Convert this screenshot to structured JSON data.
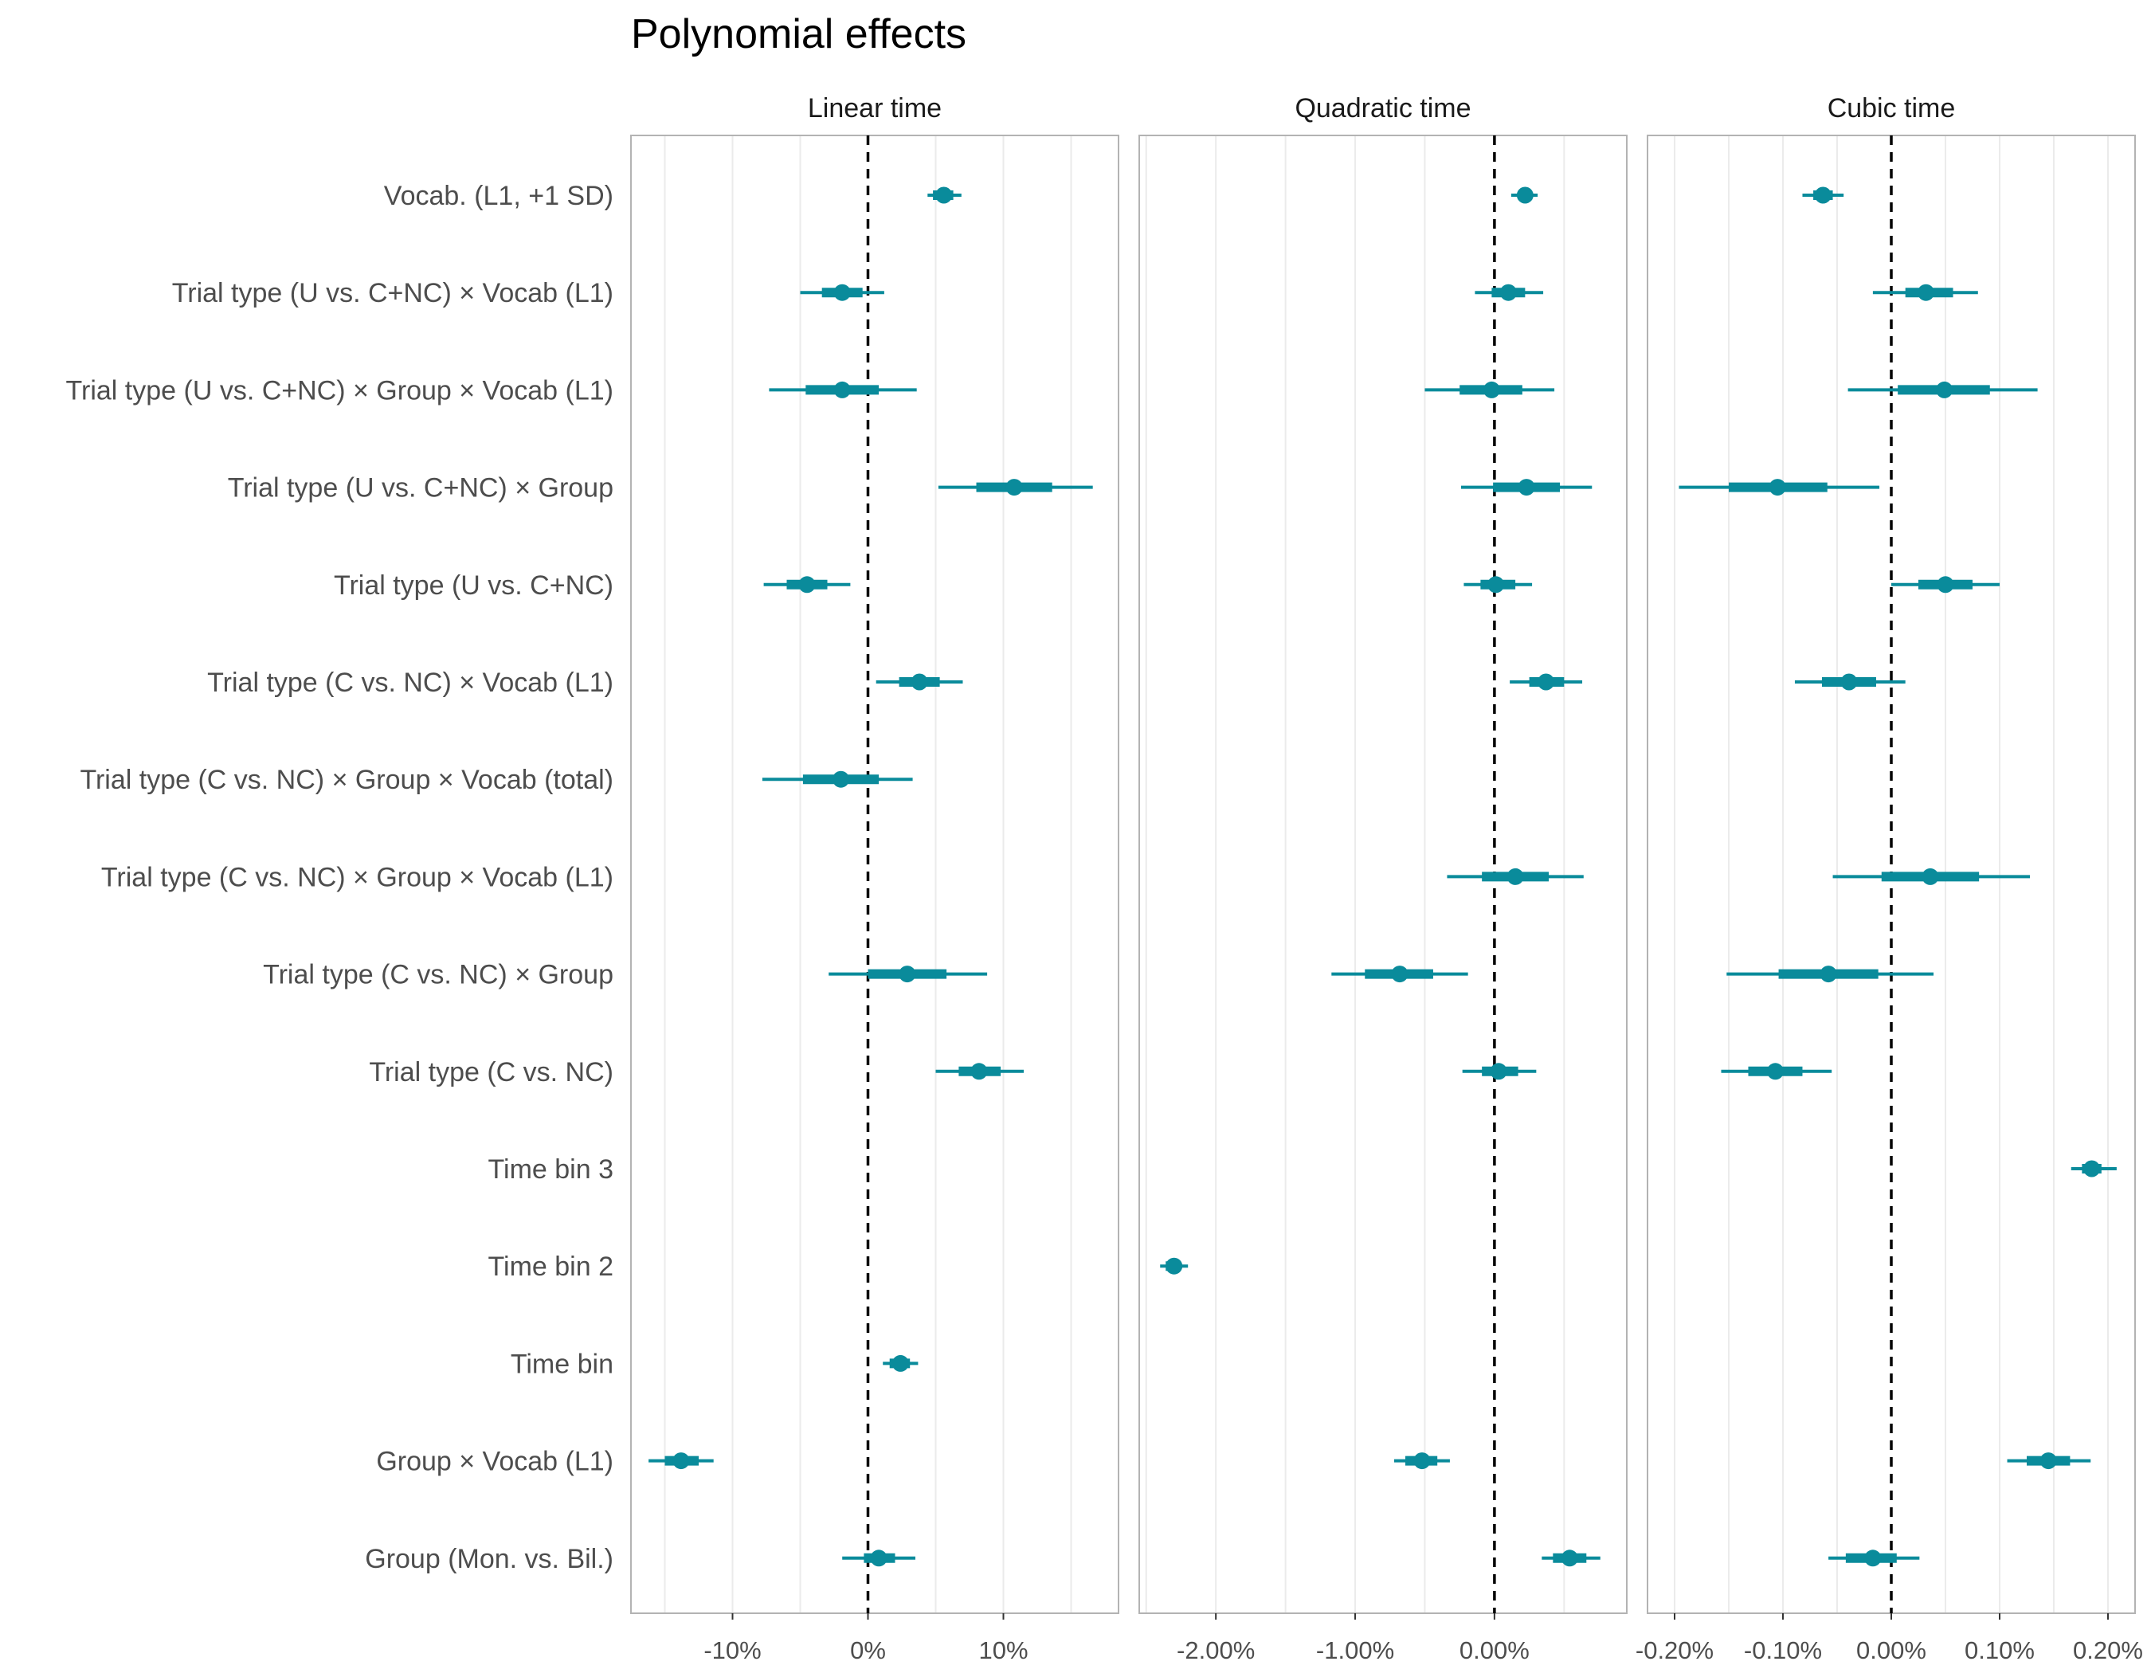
{
  "chart_data": {
    "type": "forest",
    "title": "Polynomial effects",
    "color": "#0a8b9b",
    "rows": [
      "Vocab. (L1, +1 SD)",
      "Trial type (U vs. C+NC) × Vocab (L1)",
      "Trial type (U vs. C+NC) × Group × Vocab (L1)",
      "Trial type (U vs. C+NC) × Group",
      "Trial type (U vs. C+NC)",
      "Trial type (C vs. NC) × Vocab (L1)",
      "Trial type (C vs. NC) × Group × Vocab (total)",
      "Trial type (C vs. NC) × Group × Vocab (L1)",
      "Trial type (C vs. NC) × Group",
      "Trial type (C vs. NC)",
      "Time bin 3",
      "Time bin 2",
      "Time bin",
      "Group × Vocab (L1)",
      "Group (Mon. vs. Bil.)"
    ],
    "panels": [
      {
        "label": "Linear time",
        "unit": "percent",
        "xlim": [
          -17.5,
          18.5
        ],
        "ticks": [
          -10,
          0,
          10
        ],
        "tick_labels": [
          "-10%",
          "0%",
          "10%"
        ],
        "minor_gridlines": [
          -15,
          -5,
          5,
          15
        ],
        "effects": [
          {
            "row": 0,
            "estimate": 5.6,
            "inner": [
              4.8,
              6.3
            ],
            "outer": [
              4.4,
              6.9
            ]
          },
          {
            "row": 1,
            "estimate": -1.9,
            "inner": [
              -3.4,
              -0.4
            ],
            "outer": [
              -5.0,
              1.2
            ]
          },
          {
            "row": 2,
            "estimate": -1.9,
            "inner": [
              -4.6,
              0.8
            ],
            "outer": [
              -7.3,
              3.6
            ]
          },
          {
            "row": 3,
            "estimate": 10.8,
            "inner": [
              8.0,
              13.6
            ],
            "outer": [
              5.2,
              16.6
            ]
          },
          {
            "row": 4,
            "estimate": -4.5,
            "inner": [
              -6.0,
              -3.0
            ],
            "outer": [
              -7.7,
              -1.3
            ]
          },
          {
            "row": 5,
            "estimate": 3.8,
            "inner": [
              2.3,
              5.3
            ],
            "outer": [
              0.6,
              7.0
            ]
          },
          {
            "row": 6,
            "estimate": -2.0,
            "inner": [
              -4.8,
              0.8
            ],
            "outer": [
              -7.8,
              3.3
            ]
          },
          {
            "row": 8,
            "estimate": 2.9,
            "inner": [
              0.0,
              5.8
            ],
            "outer": [
              -2.9,
              8.8
            ]
          },
          {
            "row": 9,
            "estimate": 8.2,
            "inner": [
              6.7,
              9.8
            ],
            "outer": [
              5.0,
              11.5
            ]
          },
          {
            "row": 12,
            "estimate": 2.4,
            "inner": [
              1.6,
              3.1
            ],
            "outer": [
              1.1,
              3.7
            ]
          },
          {
            "row": 13,
            "estimate": -13.8,
            "inner": [
              -15.0,
              -12.5
            ],
            "outer": [
              -16.2,
              -11.4
            ]
          },
          {
            "row": 14,
            "estimate": 0.8,
            "inner": [
              -0.3,
              2.0
            ],
            "outer": [
              -1.9,
              3.5
            ]
          }
        ]
      },
      {
        "label": "Quadratic time",
        "unit": "percent",
        "xlim": [
          -2.55,
          0.95
        ],
        "ticks": [
          -2,
          -1,
          0
        ],
        "tick_labels": [
          "-2.00%",
          "-1.00%",
          "0.00%"
        ],
        "minor_gridlines": [
          -2.5,
          -1.5,
          -0.5,
          0.5
        ],
        "effects": [
          {
            "row": 0,
            "estimate": 0.22,
            "inner": [
              0.17,
              0.27
            ],
            "outer": [
              0.12,
              0.31
            ]
          },
          {
            "row": 1,
            "estimate": 0.1,
            "inner": [
              -0.02,
              0.22
            ],
            "outer": [
              -0.14,
              0.35
            ]
          },
          {
            "row": 2,
            "estimate": -0.02,
            "inner": [
              -0.25,
              0.2
            ],
            "outer": [
              -0.5,
              0.43
            ]
          },
          {
            "row": 3,
            "estimate": 0.23,
            "inner": [
              -0.01,
              0.47
            ],
            "outer": [
              -0.24,
              0.7
            ]
          },
          {
            "row": 4,
            "estimate": 0.01,
            "inner": [
              -0.1,
              0.15
            ],
            "outer": [
              -0.22,
              0.27
            ]
          },
          {
            "row": 5,
            "estimate": 0.37,
            "inner": [
              0.25,
              0.5
            ],
            "outer": [
              0.11,
              0.63
            ]
          },
          {
            "row": 7,
            "estimate": 0.15,
            "inner": [
              -0.09,
              0.39
            ],
            "outer": [
              -0.34,
              0.64
            ]
          },
          {
            "row": 8,
            "estimate": -0.68,
            "inner": [
              -0.93,
              -0.44
            ],
            "outer": [
              -1.17,
              -0.19
            ]
          },
          {
            "row": 9,
            "estimate": 0.03,
            "inner": [
              -0.09,
              0.17
            ],
            "outer": [
              -0.23,
              0.3
            ]
          },
          {
            "row": 11,
            "estimate": -2.3,
            "inner": [
              -2.36,
              -2.26
            ],
            "outer": [
              -2.4,
              -2.2
            ]
          },
          {
            "row": 13,
            "estimate": -0.52,
            "inner": [
              -0.64,
              -0.41
            ],
            "outer": [
              -0.72,
              -0.32
            ]
          },
          {
            "row": 14,
            "estimate": 0.54,
            "inner": [
              0.42,
              0.66
            ],
            "outer": [
              0.34,
              0.76
            ]
          }
        ]
      },
      {
        "label": "Cubic time",
        "unit": "percent",
        "xlim": [
          -0.225,
          0.225
        ],
        "ticks": [
          -0.2,
          -0.1,
          0.0,
          0.1,
          0.2
        ],
        "tick_labels": [
          "-0.20%",
          "-0.10%",
          "0.00%",
          "0.10%",
          "0.20%"
        ],
        "minor_gridlines": [
          -0.15,
          -0.05,
          0.05,
          0.15
        ],
        "effects": [
          {
            "row": 0,
            "estimate": -0.063,
            "inner": [
              -0.072,
              -0.054
            ],
            "outer": [
              -0.082,
              -0.044
            ]
          },
          {
            "row": 1,
            "estimate": 0.032,
            "inner": [
              0.013,
              0.057
            ],
            "outer": [
              -0.017,
              0.08
            ]
          },
          {
            "row": 2,
            "estimate": 0.049,
            "inner": [
              0.006,
              0.091
            ],
            "outer": [
              -0.04,
              0.135
            ]
          },
          {
            "row": 3,
            "estimate": -0.105,
            "inner": [
              -0.15,
              -0.059
            ],
            "outer": [
              -0.196,
              -0.011
            ]
          },
          {
            "row": 4,
            "estimate": 0.05,
            "inner": [
              0.025,
              0.075
            ],
            "outer": [
              0.0,
              0.1
            ]
          },
          {
            "row": 5,
            "estimate": -0.039,
            "inner": [
              -0.064,
              -0.014
            ],
            "outer": [
              -0.089,
              0.013
            ]
          },
          {
            "row": 7,
            "estimate": 0.036,
            "inner": [
              -0.009,
              0.081
            ],
            "outer": [
              -0.054,
              0.128
            ]
          },
          {
            "row": 8,
            "estimate": -0.058,
            "inner": [
              -0.104,
              -0.012
            ],
            "outer": [
              -0.152,
              0.039
            ]
          },
          {
            "row": 9,
            "estimate": -0.107,
            "inner": [
              -0.132,
              -0.082
            ],
            "outer": [
              -0.157,
              -0.055
            ]
          },
          {
            "row": 10,
            "estimate": 0.185,
            "inner": [
              0.176,
              0.194
            ],
            "outer": [
              0.166,
              0.208
            ]
          },
          {
            "row": 13,
            "estimate": 0.145,
            "inner": [
              0.125,
              0.165
            ],
            "outer": [
              0.107,
              0.184
            ]
          },
          {
            "row": 14,
            "estimate": -0.017,
            "inner": [
              -0.042,
              0.005
            ],
            "outer": [
              -0.058,
              0.026
            ]
          }
        ]
      }
    ]
  }
}
